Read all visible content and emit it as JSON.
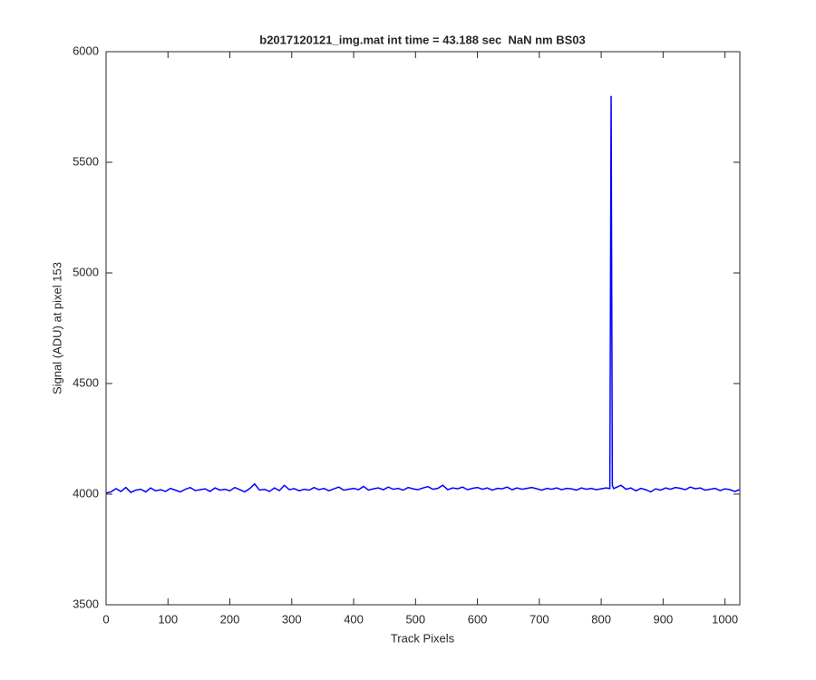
{
  "chart_data": {
    "type": "line",
    "title": "b2017120121_img.mat int time = 43.188 sec  NaN nm BS03",
    "x_label": "Track Pixels",
    "y_label": "Signal (ADU) at pixel 153",
    "xlim": [
      0,
      1024
    ],
    "ylim": [
      3500,
      6000
    ],
    "xticks": [
      0,
      100,
      200,
      300,
      400,
      500,
      600,
      700,
      800,
      900,
      1000
    ],
    "yticks": [
      3500,
      4000,
      4500,
      5000,
      5500,
      6000
    ],
    "x": [
      0,
      8,
      16,
      24,
      32,
      40,
      48,
      56,
      64,
      72,
      80,
      88,
      96,
      104,
      112,
      120,
      128,
      136,
      144,
      152,
      160,
      168,
      176,
      184,
      192,
      200,
      208,
      216,
      224,
      232,
      240,
      248,
      256,
      264,
      272,
      280,
      288,
      296,
      304,
      312,
      320,
      328,
      336,
      344,
      352,
      360,
      368,
      376,
      384,
      392,
      400,
      408,
      416,
      424,
      432,
      440,
      448,
      456,
      464,
      472,
      480,
      488,
      496,
      504,
      512,
      520,
      528,
      536,
      544,
      552,
      560,
      568,
      576,
      584,
      592,
      600,
      608,
      616,
      624,
      632,
      640,
      648,
      656,
      664,
      672,
      680,
      688,
      696,
      704,
      712,
      720,
      728,
      736,
      744,
      752,
      760,
      768,
      776,
      784,
      792,
      800,
      808,
      814,
      816,
      818,
      820,
      824,
      832,
      840,
      848,
      856,
      864,
      872,
      880,
      888,
      896,
      904,
      912,
      920,
      928,
      936,
      944,
      952,
      960,
      968,
      976,
      984,
      992,
      1000,
      1008,
      1016,
      1023
    ],
    "series": [
      {
        "name": "signal",
        "color": "#0000ff",
        "values": [
          4005,
          4010,
          4025,
          4012,
          4030,
          4008,
          4018,
          4022,
          4010,
          4028,
          4015,
          4020,
          4012,
          4026,
          4018,
          4010,
          4022,
          4030,
          4016,
          4020,
          4024,
          4012,
          4028,
          4018,
          4022,
          4015,
          4030,
          4020,
          4010,
          4025,
          4046,
          4018,
          4022,
          4012,
          4028,
          4016,
          4040,
          4020,
          4025,
          4015,
          4022,
          4018,
          4030,
          4020,
          4026,
          4015,
          4024,
          4032,
          4018,
          4022,
          4026,
          4020,
          4035,
          4018,
          4024,
          4028,
          4020,
          4032,
          4022,
          4026,
          4018,
          4030,
          4024,
          4020,
          4028,
          4034,
          4022,
          4026,
          4040,
          4020,
          4028,
          4024,
          4032,
          4020,
          4026,
          4030,
          4022,
          4028,
          4018,
          4026,
          4024,
          4032,
          4020,
          4028,
          4022,
          4026,
          4030,
          4024,
          4018,
          4026,
          4022,
          4028,
          4020,
          4026,
          4024,
          4018,
          4028,
          4022,
          4026,
          4020,
          4024,
          4028,
          4025,
          5800,
          4040,
          4025,
          4030,
          4040,
          4022,
          4028,
          4015,
          4026,
          4020,
          4010,
          4024,
          4018,
          4028,
          4022,
          4030,
          4026,
          4020,
          4032,
          4024,
          4028,
          4018,
          4022,
          4026,
          4016,
          4024,
          4020,
          4012,
          4020
        ]
      }
    ]
  }
}
